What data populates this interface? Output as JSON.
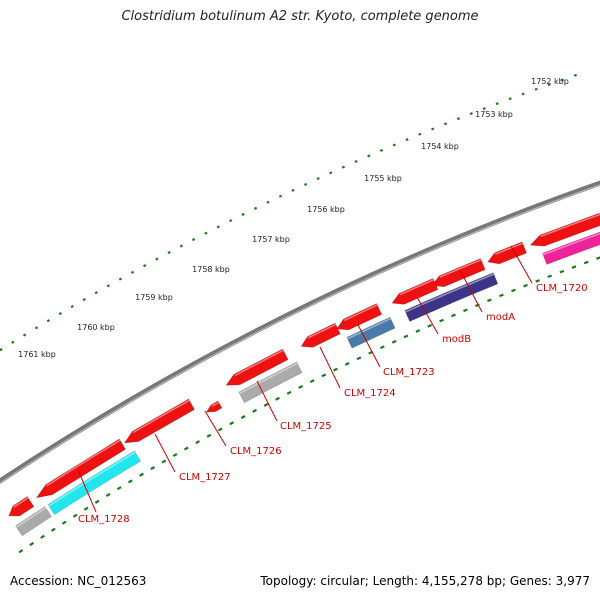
{
  "title": "Clostridium botulinum A2 str. Kyoto, complete genome",
  "footer": {
    "accession": "Accession: NC_012563",
    "summary": "Topology: circular; Length: 4,155,278 bp; Genes: 3,977"
  },
  "kbp_ticks": [
    "1752 kbp",
    "1753 kbp",
    "1754 kbp",
    "1755 kbp",
    "1756 kbp",
    "1757 kbp",
    "1758 kbp",
    "1759 kbp",
    "1760 kbp",
    "1761 kbp"
  ],
  "gene_labels": [
    "CLM_1720",
    "modA",
    "modB",
    "CLM_1723",
    "CLM_1724",
    "CLM_1725",
    "CLM_1726",
    "CLM_1727",
    "CLM_1728"
  ],
  "colors": {
    "backbone": "#777777",
    "gene_red": "#ee1111",
    "cyan": "#22e6ee",
    "magenta": "#ee2299",
    "indigo": "#3c3488",
    "steel_blue": "#4a7aaa",
    "gray": "#aaaaaa",
    "scale_dots": "#1a7a1a",
    "label_red": "#cc0000"
  }
}
